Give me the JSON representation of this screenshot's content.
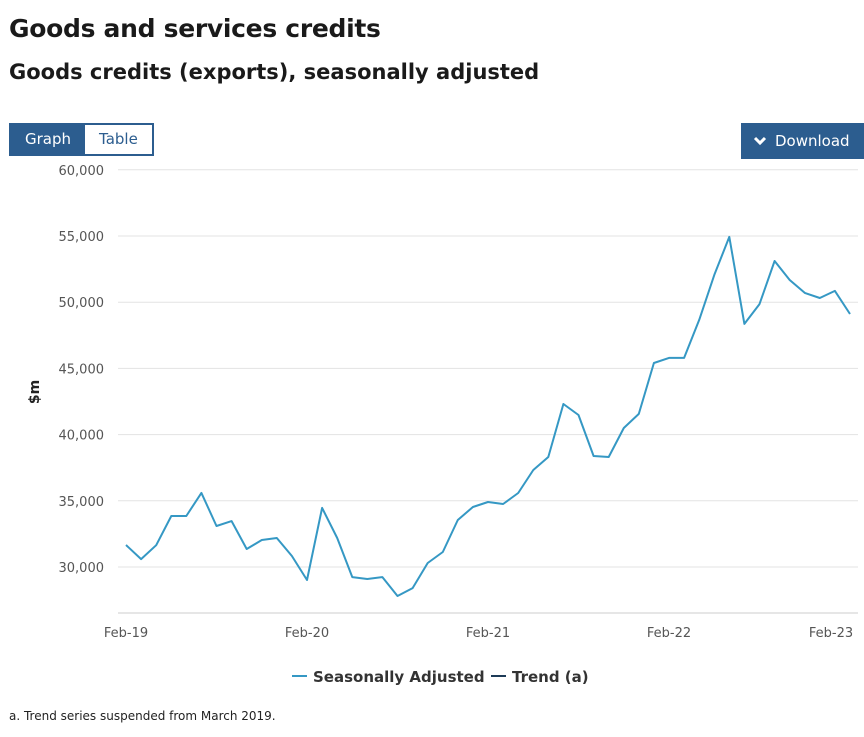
{
  "header": {
    "title": "Goods and services credits",
    "subtitle": "Goods credits (exports), seasonally adjusted"
  },
  "toolbar": {
    "graph_label": "Graph",
    "table_label": "Table",
    "download_label": "Download",
    "download_icon": "chevron-down-icon"
  },
  "colors": {
    "seasonally_adjusted": "#3598c4",
    "trend": "#1d3b57",
    "button": "#2c5d8f"
  },
  "chart_data": {
    "type": "line",
    "ylabel": "$m",
    "ylim": [
      26500,
      60000
    ],
    "yticks": [
      30000,
      35000,
      40000,
      45000,
      50000,
      55000,
      60000
    ],
    "ytick_labels": [
      "30,000",
      "35,000",
      "40,000",
      "45,000",
      "50,000",
      "55,000",
      "60,000"
    ],
    "xtick_labels": [
      "Feb-19",
      "Feb-20",
      "Feb-21",
      "Feb-22",
      "Feb-23"
    ],
    "x_start": "Feb-19",
    "x_end": "Feb-23",
    "x_frequency": "monthly",
    "grid": true,
    "legend_position": "bottom",
    "series": [
      {
        "name": "Seasonally Adjusted",
        "values": [
          31660,
          30600,
          31650,
          33850,
          33850,
          35600,
          33100,
          33470,
          31360,
          32040,
          32190,
          30830,
          29020,
          34460,
          32190,
          29240,
          29090,
          29240,
          27810,
          28410,
          30300,
          31130,
          33550,
          34530,
          34910,
          34760,
          35590,
          37330,
          38310,
          42310,
          41480,
          38380,
          38310,
          40500,
          41560,
          45410,
          45790,
          45790,
          48660,
          52060,
          54930,
          48360,
          49860,
          53110,
          51680,
          50700,
          50320,
          50850,
          49110
        ]
      },
      {
        "name": "Trend (a)",
        "values": []
      }
    ],
    "footnote": "a. Trend series suspended from March 2019."
  }
}
